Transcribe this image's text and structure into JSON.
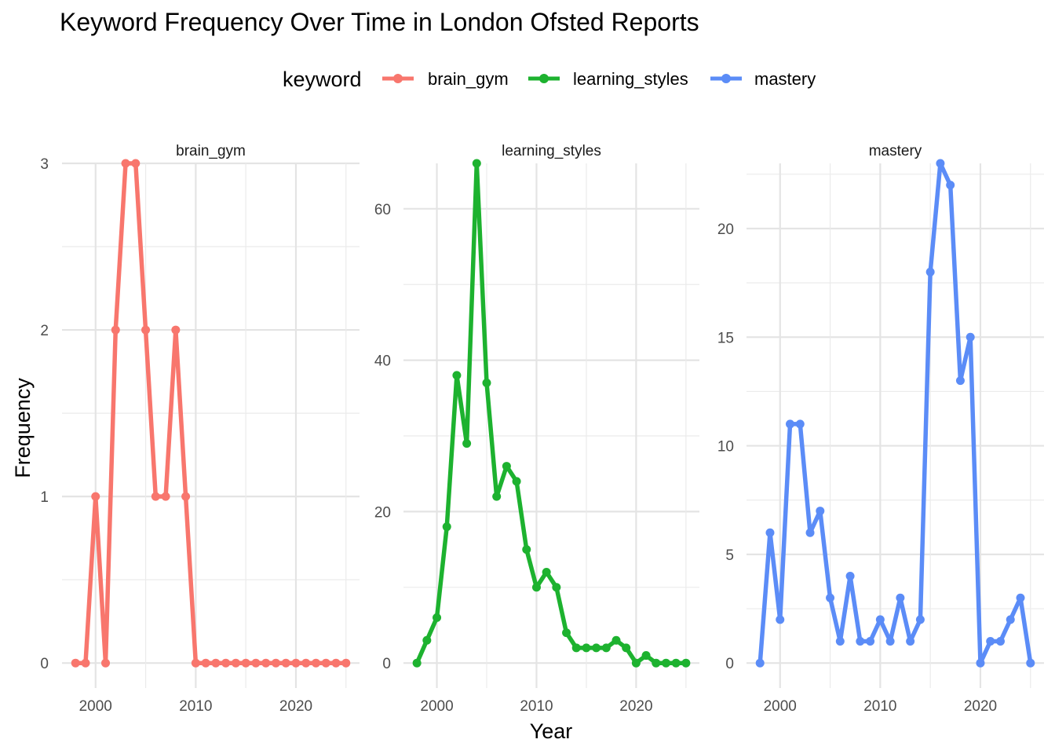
{
  "chart_data": {
    "type": "line",
    "title": "Keyword Frequency Over Time in London Ofsted Reports",
    "xlabel": "Year",
    "ylabel": "Frequency",
    "legend": {
      "title": "keyword",
      "placement": "top",
      "entries": [
        "brain_gym",
        "learning_styles",
        "mastery"
      ]
    },
    "grid": true,
    "x": [
      1998,
      1999,
      2000,
      2001,
      2002,
      2003,
      2004,
      2005,
      2006,
      2007,
      2008,
      2009,
      2010,
      2011,
      2012,
      2013,
      2014,
      2015,
      2016,
      2017,
      2018,
      2019,
      2020,
      2021,
      2022,
      2023,
      2024,
      2025
    ],
    "x_ticks": [
      "2000",
      "2010",
      "2020"
    ],
    "panels": [
      {
        "name": "brain_gym",
        "color": "#F8766D",
        "ylim": [
          -0.15,
          3.0
        ],
        "y_ticks": [
          "0",
          "1",
          "2",
          "3"
        ],
        "values": [
          0,
          0,
          1,
          0,
          2,
          3,
          3,
          2,
          1,
          1,
          2,
          1,
          0,
          0,
          0,
          0,
          0,
          0,
          0,
          0,
          0,
          0,
          0,
          0,
          0,
          0,
          0,
          0
        ]
      },
      {
        "name": "learning_styles",
        "color": "#1DB22F",
        "ylim": [
          -3.3,
          66
        ],
        "y_ticks": [
          "0",
          "20",
          "40",
          "60"
        ],
        "values": [
          0,
          3,
          6,
          18,
          38,
          29,
          66,
          37,
          22,
          26,
          24,
          15,
          10,
          12,
          10,
          4,
          2,
          2,
          2,
          2,
          3,
          2,
          0,
          1,
          0,
          0,
          0,
          0
        ]
      },
      {
        "name": "mastery",
        "color": "#5B8CF7",
        "ylim": [
          -1.15,
          23
        ],
        "y_ticks": [
          "0",
          "5",
          "10",
          "15",
          "20"
        ],
        "values": [
          0,
          6,
          2,
          11,
          11,
          6,
          7,
          3,
          1,
          4,
          1,
          1,
          2,
          1,
          3,
          1,
          2,
          18,
          23,
          22,
          13,
          15,
          0,
          1,
          1,
          2,
          3,
          0
        ]
      }
    ]
  }
}
